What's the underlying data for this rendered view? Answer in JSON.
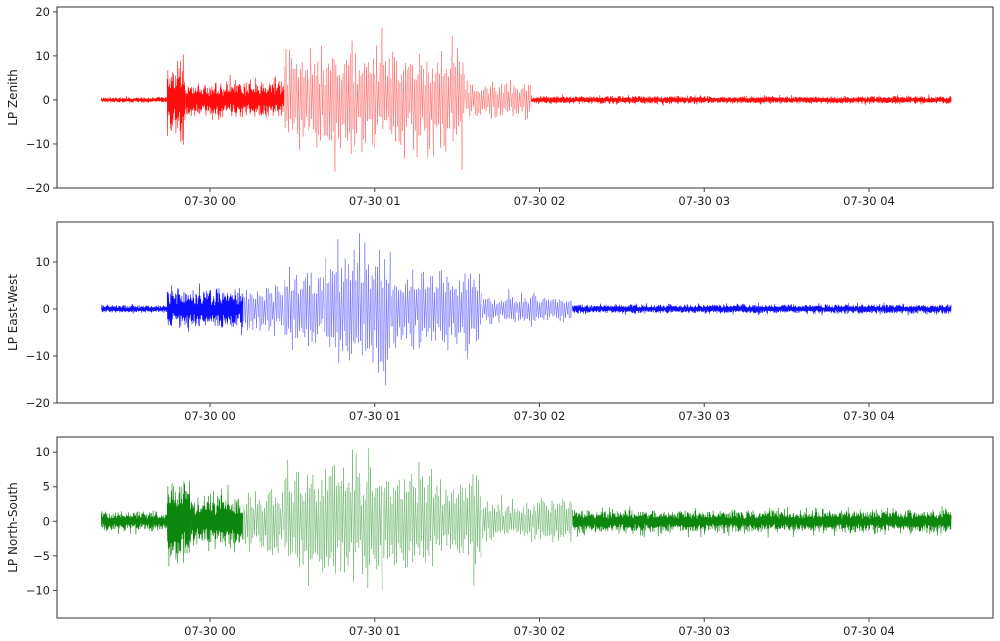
{
  "chart_data": [
    {
      "type": "line",
      "title": "",
      "ylabel": "LP Zenith",
      "xlabel": "",
      "color": "#ff0000",
      "ylim": [
        -20,
        21.1
      ],
      "yticks": [
        -20,
        -10,
        0,
        10,
        20
      ],
      "ytick_labels": [
        "−20",
        "−10",
        "0",
        "10",
        "20"
      ],
      "xtick_labels": [
        "07-30 00",
        "07-30 01",
        "07-30 02",
        "07-30 03",
        "07-30 04"
      ],
      "grid": false,
      "x_range_hours": [
        -0.66,
        4.5
      ],
      "envelope": [
        {
          "t0": -0.66,
          "t1": -0.26,
          "amp": 0.7,
          "density": "dense"
        },
        {
          "t0": -0.26,
          "t1": -0.15,
          "amp": 9,
          "density": "dense"
        },
        {
          "t0": -0.15,
          "t1": 0.45,
          "amp": 4.5,
          "density": "dense"
        },
        {
          "t0": 0.45,
          "t1": 0.6,
          "amp": 14,
          "density": "sparse"
        },
        {
          "t0": 0.6,
          "t1": 1.0,
          "amp": 14,
          "density": "sparse"
        },
        {
          "t0": 1.0,
          "t1": 1.55,
          "amp": 13,
          "density": "sparse"
        },
        {
          "t0": 1.55,
          "t1": 1.95,
          "amp": 5,
          "density": "sparse"
        },
        {
          "t0": 1.95,
          "t1": 4.5,
          "amp": 1.0,
          "density": "dense"
        }
      ],
      "peaks": {
        "max": 19.5,
        "min": -18
      }
    },
    {
      "type": "line",
      "title": "",
      "ylabel": "LP East-West",
      "xlabel": "",
      "color": "#0000ff",
      "ylim": [
        -20,
        18.5
      ],
      "yticks": [
        -20,
        -10,
        0,
        10
      ],
      "ytick_labels": [
        "−20",
        "−10",
        "0",
        "10"
      ],
      "xtick_labels": [
        "07-30 00",
        "07-30 01",
        "07-30 02",
        "07-30 03",
        "07-30 04"
      ],
      "grid": false,
      "x_range_hours": [
        -0.66,
        4.5
      ],
      "envelope": [
        {
          "t0": -0.66,
          "t1": -0.26,
          "amp": 0.9,
          "density": "dense"
        },
        {
          "t0": -0.26,
          "t1": 0.2,
          "amp": 4.5,
          "density": "dense"
        },
        {
          "t0": 0.2,
          "t1": 0.45,
          "amp": 5.5,
          "density": "sparse"
        },
        {
          "t0": 0.45,
          "t1": 0.7,
          "amp": 10,
          "density": "sparse"
        },
        {
          "t0": 0.7,
          "t1": 1.1,
          "amp": 15,
          "density": "sparse"
        },
        {
          "t0": 1.1,
          "t1": 1.65,
          "amp": 9,
          "density": "sparse"
        },
        {
          "t0": 1.65,
          "t1": 2.2,
          "amp": 3.5,
          "density": "sparse"
        },
        {
          "t0": 2.2,
          "t1": 4.5,
          "amp": 1.1,
          "density": "dense"
        }
      ],
      "peaks": {
        "max": 17,
        "min": -18.5
      }
    },
    {
      "type": "line",
      "title": "",
      "ylabel": "LP North-South",
      "xlabel": "",
      "color": "#008000",
      "ylim": [
        -14,
        12.2
      ],
      "yticks": [
        -10,
        -5,
        0,
        5,
        10
      ],
      "ytick_labels": [
        "−10",
        "−5",
        "0",
        "5",
        "10"
      ],
      "xtick_labels": [
        "07-30 00",
        "07-30 01",
        "07-30 02",
        "07-30 03",
        "07-30 04"
      ],
      "grid": false,
      "x_range_hours": [
        -0.66,
        4.5
      ],
      "envelope": [
        {
          "t0": -0.66,
          "t1": -0.26,
          "amp": 1.6,
          "density": "dense"
        },
        {
          "t0": -0.26,
          "t1": -0.12,
          "amp": 7,
          "density": "dense"
        },
        {
          "t0": -0.12,
          "t1": 0.2,
          "amp": 4,
          "density": "dense"
        },
        {
          "t0": 0.2,
          "t1": 0.45,
          "amp": 5,
          "density": "sparse"
        },
        {
          "t0": 0.45,
          "t1": 1.05,
          "amp": 9.5,
          "density": "sparse"
        },
        {
          "t0": 1.05,
          "t1": 1.65,
          "amp": 8,
          "density": "sparse"
        },
        {
          "t0": 1.65,
          "t1": 2.2,
          "amp": 3.5,
          "density": "sparse"
        },
        {
          "t0": 2.2,
          "t1": 4.5,
          "amp": 1.8,
          "density": "dense"
        }
      ],
      "peaks": {
        "max": 11,
        "min": -13
      }
    }
  ]
}
